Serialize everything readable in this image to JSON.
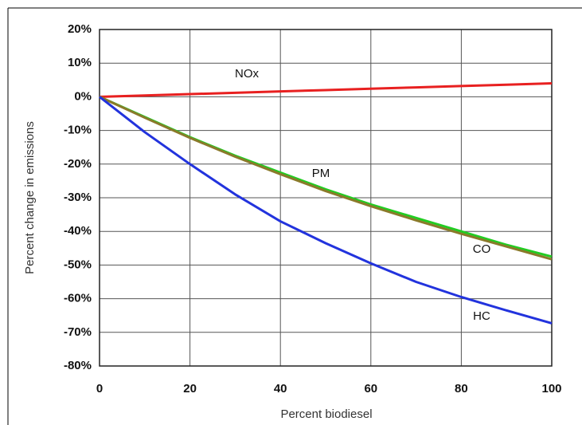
{
  "chart_data": {
    "type": "line",
    "x_label": "Percent biodiesel",
    "y_label": "Percent change in emissions",
    "x": [
      0,
      10,
      20,
      30,
      40,
      50,
      60,
      70,
      80,
      90,
      100
    ],
    "series": [
      {
        "name": "NOx",
        "color": "#e82020",
        "values": [
          0,
          0.4,
          0.8,
          1.2,
          1.6,
          2,
          2.4,
          2.8,
          3.2,
          3.6,
          4
        ]
      },
      {
        "name": "PM",
        "color": "#22cc22",
        "values": [
          0,
          -6,
          -12,
          -17.5,
          -22.5,
          -27.5,
          -32,
          -36,
          -40,
          -44,
          -47.5
        ]
      },
      {
        "name": "CO",
        "color": "#8a7a2a",
        "values": [
          0,
          -6.2,
          -12.2,
          -17.8,
          -23,
          -28,
          -32.5,
          -36.7,
          -40.7,
          -44.5,
          -48.3
        ]
      },
      {
        "name": "HC",
        "color": "#2233dd",
        "values": [
          0,
          -10.5,
          -20,
          -29,
          -37,
          -43.5,
          -49.5,
          -55,
          -59.5,
          -63.5,
          -67.3
        ]
      }
    ],
    "xlim": [
      0,
      100
    ],
    "xticks": [
      0,
      20,
      40,
      60,
      80,
      100
    ],
    "ylim": [
      -80,
      20
    ],
    "yticks": [
      {
        "value": -80,
        "label": "-80%"
      },
      {
        "value": -70,
        "label": "-70%"
      },
      {
        "value": -60,
        "label": "-60%"
      },
      {
        "value": -50,
        "label": "-50%"
      },
      {
        "value": -40,
        "label": "-40%"
      },
      {
        "value": -30,
        "label": "-30%"
      },
      {
        "value": -20,
        "label": "-20%"
      },
      {
        "value": -10,
        "label": "-10%"
      },
      {
        "value": 0,
        "label": "0%"
      },
      {
        "value": 10,
        "label": "10%"
      },
      {
        "value": 20,
        "label": "20%"
      }
    ],
    "grid": true
  }
}
